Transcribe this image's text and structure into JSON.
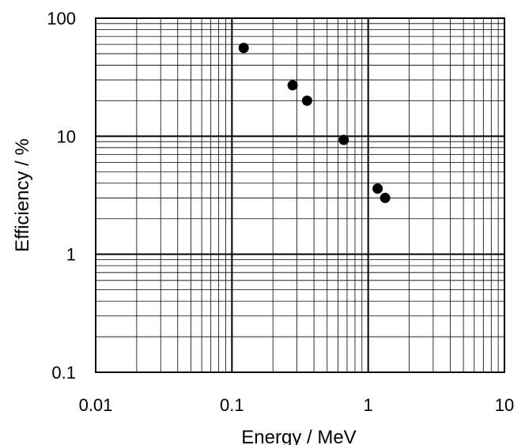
{
  "chart_data": {
    "type": "scatter",
    "title": "",
    "xlabel": "Energy / MeV",
    "ylabel": "Efficiency / %",
    "x_scale": "log",
    "y_scale": "log",
    "xlim": [
      0.01,
      10
    ],
    "ylim": [
      0.1,
      100
    ],
    "grid": true,
    "x_ticks": [
      {
        "value": 0.01,
        "label": "0.01"
      },
      {
        "value": 0.1,
        "label": "0.1"
      },
      {
        "value": 1,
        "label": "1"
      },
      {
        "value": 10,
        "label": "10"
      }
    ],
    "y_ticks": [
      {
        "value": 0.1,
        "label": "0.1"
      },
      {
        "value": 1,
        "label": "1"
      },
      {
        "value": 10,
        "label": "10"
      },
      {
        "value": 100,
        "label": "100"
      }
    ],
    "marker_color": "#000000",
    "points": [
      {
        "x": 0.122,
        "y": 56
      },
      {
        "x": 0.279,
        "y": 27
      },
      {
        "x": 0.356,
        "y": 20
      },
      {
        "x": 0.662,
        "y": 9.3
      },
      {
        "x": 1.173,
        "y": 3.6
      },
      {
        "x": 1.332,
        "y": 3.0
      }
    ]
  }
}
